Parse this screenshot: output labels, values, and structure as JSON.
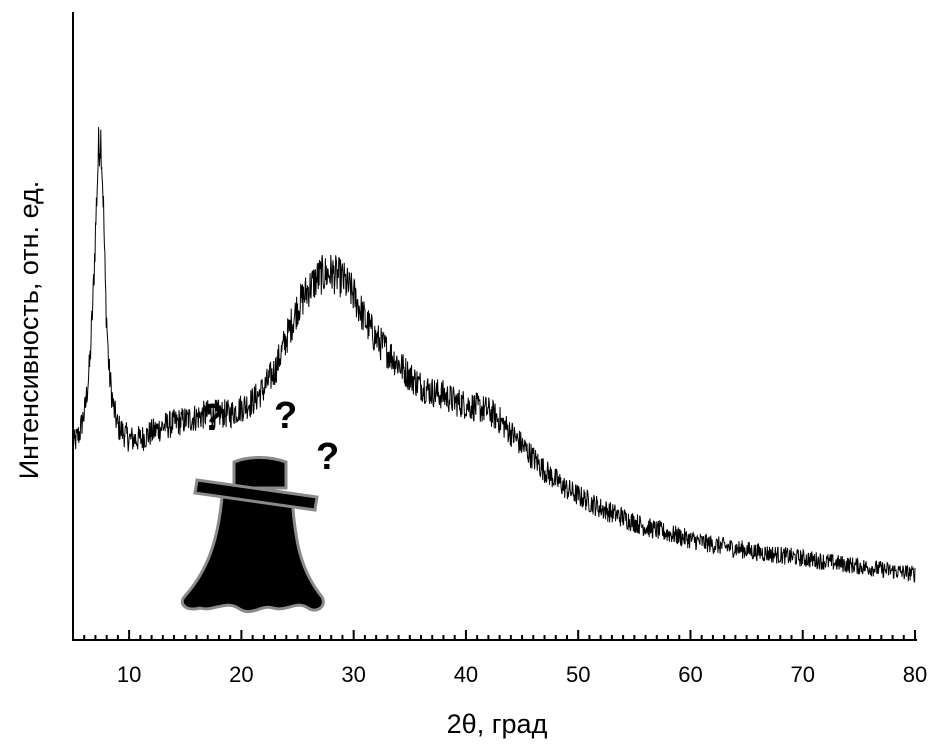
{
  "chart_data": {
    "type": "line",
    "title": "",
    "xlabel": "2θ, град",
    "ylabel": "Интенсивность, отн. ед.",
    "xlim": [
      5,
      80
    ],
    "ylim": [
      0,
      100
    ],
    "x_major_ticks": [
      10,
      20,
      30,
      40,
      50,
      60,
      70,
      80
    ],
    "x_minor_step": 1,
    "y_tick_labels": false,
    "grid": false,
    "legend": "none",
    "line_color": "#000000",
    "series": [
      {
        "x": [
          5,
          5.6,
          6.1,
          6.5,
          6.8,
          7.1,
          7.3,
          7.5,
          7.7,
          7.9,
          8.2,
          8.6,
          9.0,
          9.5,
          10,
          11,
          12,
          13,
          14,
          15,
          16,
          17,
          18,
          19,
          20,
          21,
          22,
          23,
          24,
          25,
          26,
          27,
          28,
          29,
          30,
          31,
          32,
          33,
          34,
          35,
          36,
          37,
          38,
          39,
          40,
          41,
          42,
          43,
          44,
          45,
          46,
          47,
          48,
          49,
          50,
          52,
          54,
          56,
          58,
          60,
          62,
          64,
          66,
          68,
          70,
          72,
          74,
          76,
          78,
          80
        ],
        "y": [
          31,
          33,
          37,
          44,
          55,
          70,
          79,
          80,
          70,
          55,
          43,
          37,
          34,
          33,
          32,
          32,
          33,
          34,
          34.5,
          35,
          35.5,
          36,
          36,
          36,
          37,
          38,
          40,
          43,
          48,
          53,
          56,
          58,
          58.5,
          57.5,
          55,
          51,
          48,
          46,
          44,
          42,
          40.5,
          39.5,
          39,
          38,
          37.5,
          37,
          36.5,
          35,
          33,
          31,
          29,
          27,
          25.5,
          24,
          23,
          21,
          19.5,
          18,
          17,
          16,
          15.2,
          14.6,
          14,
          13.5,
          13,
          12.5,
          12,
          11.5,
          11,
          10.5
        ]
      }
    ],
    "annotations": [
      "?",
      "?",
      "?"
    ]
  }
}
